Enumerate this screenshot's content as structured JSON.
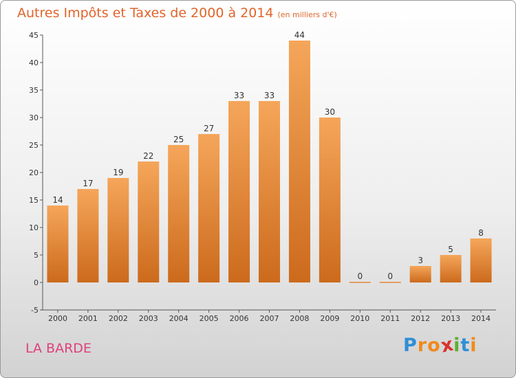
{
  "header": {
    "title": "Autres Impôts et Taxes de 2000 à 2014",
    "subtitle": "(en milliers d'€)"
  },
  "footer": {
    "location": "LA BARDE",
    "logo": {
      "letters": [
        "P",
        "r",
        "o",
        "x",
        "i",
        "t",
        "i"
      ],
      "colors": [
        "#2e8fd6",
        "#f08a1c",
        "#f08a1c",
        "#d8332a",
        "#5bb033",
        "#2e8fd6",
        "#f08a1c"
      ]
    }
  },
  "chart_data": {
    "type": "bar",
    "title": "Autres Impôts et Taxes de 2000 à 2014",
    "subtitle": "(en milliers d'€)",
    "categories": [
      "2000",
      "2001",
      "2002",
      "2003",
      "2004",
      "2005",
      "2006",
      "2007",
      "2008",
      "2009",
      "2010",
      "2011",
      "2012",
      "2013",
      "2014"
    ],
    "values": [
      14,
      17,
      19,
      22,
      25,
      27,
      33,
      33,
      44,
      30,
      0,
      0,
      3,
      5,
      8
    ],
    "data_labels": [
      "14",
      "17",
      "19",
      "22",
      "25",
      "27",
      "33",
      "33",
      "44",
      "30",
      "0",
      "0",
      "3",
      "5",
      "8"
    ],
    "ylim": [
      -5,
      45
    ],
    "yticks": [
      -5,
      0,
      5,
      10,
      15,
      20,
      25,
      30,
      35,
      40,
      45
    ],
    "ytick_labels": [
      "-5",
      "0",
      "5",
      "10",
      "15",
      "20",
      "25",
      "30",
      "35",
      "40",
      "45"
    ],
    "grid": false,
    "legend": "none",
    "bar_color_light": "#f5a65a",
    "bar_color_dark": "#cc6a1c"
  }
}
